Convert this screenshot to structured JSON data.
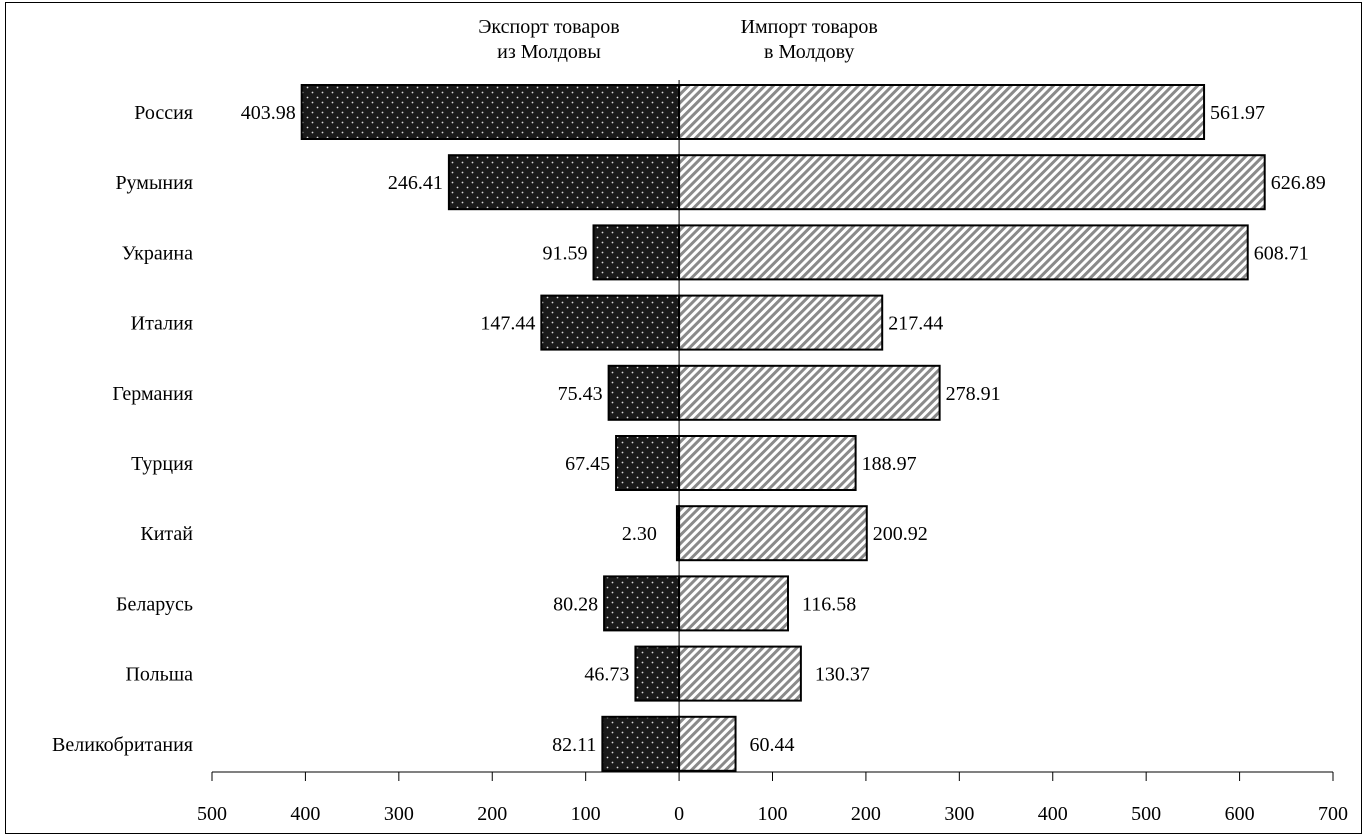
{
  "chart_data": {
    "type": "bar",
    "orientation": "horizontal",
    "layout": "back-to-back",
    "categories": [
      "Россия",
      "Румыния",
      "Украина",
      "Италия",
      "Германия",
      "Турция",
      "Китай",
      "Беларусь",
      "Польша",
      "Великобритания"
    ],
    "series": [
      {
        "name": "Экспорт товаров из Молдовы",
        "name_lines": [
          "Экспорт товаров",
          "из Молдовы"
        ],
        "direction": "left",
        "pattern": "dark-dotted",
        "color": "#1a1a1a",
        "values": [
          403.98,
          246.41,
          91.59,
          147.44,
          75.43,
          67.45,
          2.3,
          80.28,
          46.73,
          82.11
        ],
        "labels": [
          "403.98",
          "246.41",
          "91.59",
          "147.44",
          "75.43",
          "67.45",
          "2.30",
          "80.28",
          "46.73",
          "82.11"
        ]
      },
      {
        "name": "Импорт товаров в Молдову",
        "name_lines": [
          "Импорт товаров",
          "в Молдову"
        ],
        "direction": "right",
        "pattern": "diagonal-hatch",
        "color": "#8a8a8a",
        "values": [
          561.97,
          626.89,
          608.71,
          217.44,
          278.91,
          188.97,
          200.92,
          116.58,
          130.37,
          60.44
        ],
        "labels": [
          "561.97",
          "626.89",
          "608.71",
          "217.44",
          "278.91",
          "188.97",
          "200.92",
          "116.58",
          "130.37",
          "60.44"
        ]
      }
    ],
    "xlim": [
      -500,
      700
    ],
    "xticks": [
      -500,
      -400,
      -300,
      -200,
      -100,
      0,
      100,
      200,
      300,
      400,
      500,
      600,
      700
    ],
    "xtick_labels": [
      "500",
      "400",
      "300",
      "200",
      "100",
      "0",
      "100",
      "200",
      "300",
      "400",
      "500",
      "600",
      "700"
    ],
    "title": "",
    "xlabel": "",
    "ylabel": "",
    "grid": false,
    "legend": "top"
  }
}
